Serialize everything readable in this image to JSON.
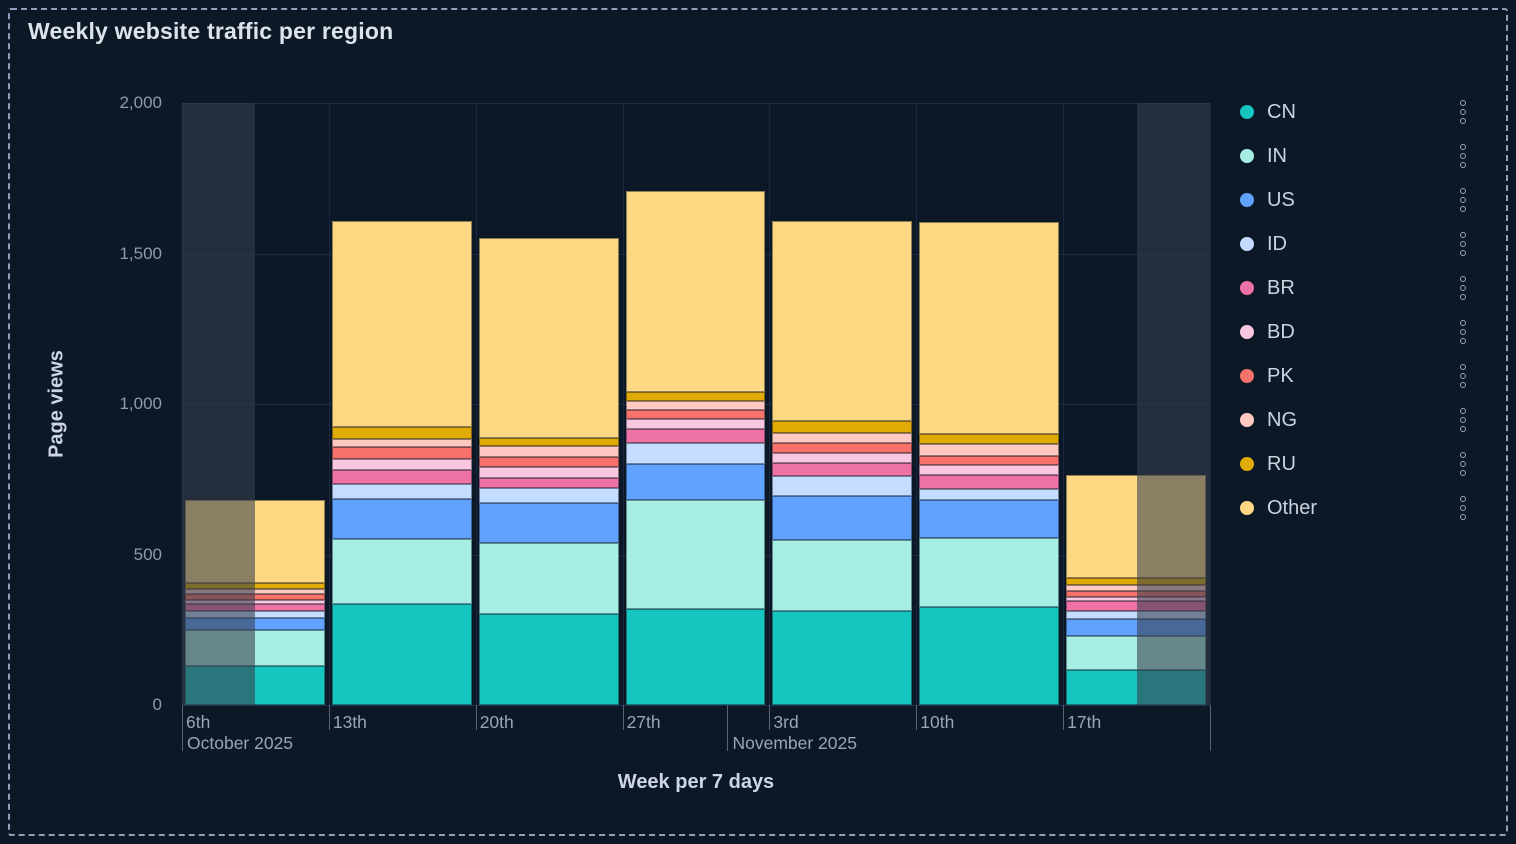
{
  "page": {
    "title": "Weekly website traffic per region"
  },
  "axes": {
    "y": {
      "title": "Page views",
      "tick_labels": [
        "0",
        "500",
        "1,000",
        "1,500",
        "2,000"
      ]
    },
    "x": {
      "title": "Week per 7 days"
    }
  },
  "legend": {
    "action_icon": "vertical-dots-menu",
    "items": [
      "CN",
      "IN",
      "US",
      "ID",
      "BR",
      "BD",
      "PK",
      "NG",
      "RU",
      "Other"
    ]
  },
  "chart_data": {
    "type": "bar",
    "stacked": true,
    "title": "Weekly website traffic per region",
    "xlabel": "Week per 7 days",
    "ylabel": "Page views",
    "ylim": [
      0,
      2000
    ],
    "y_ticks": [
      0,
      500,
      1000,
      1500,
      2000
    ],
    "grid": true,
    "legend_position": "right",
    "categories": [
      "6th",
      "13th",
      "20th",
      "27th",
      "3rd",
      "10th",
      "17th"
    ],
    "months": [
      {
        "index": 0,
        "label": "October 2025",
        "day_offset": 0
      },
      {
        "index": 4,
        "label": "November 2025",
        "day_offset": -2
      }
    ],
    "series": [
      {
        "name": "CN",
        "color": "#16C5C0",
        "values": [
          131,
          334,
          302,
          318,
          312,
          325,
          116
        ]
      },
      {
        "name": "IN",
        "color": "#A6EDE4",
        "values": [
          118,
          216,
          235,
          363,
          236,
          229,
          113
        ]
      },
      {
        "name": "US",
        "color": "#61A2FF",
        "values": [
          40,
          134,
          135,
          120,
          146,
          127,
          56
        ]
      },
      {
        "name": "ID",
        "color": "#C3DCFF",
        "values": [
          22,
          49,
          48,
          68,
          68,
          36,
          28
        ]
      },
      {
        "name": "BR",
        "color": "#EE72A6",
        "values": [
          25,
          48,
          33,
          47,
          43,
          47,
          33
        ]
      },
      {
        "name": "BD",
        "color": "#F9C7DF",
        "values": [
          14,
          38,
          39,
          33,
          33,
          33,
          12
        ]
      },
      {
        "name": "PK",
        "color": "#F6726A",
        "values": [
          18,
          39,
          33,
          31,
          31,
          30,
          22
        ]
      },
      {
        "name": "NG",
        "color": "#FFC9C2",
        "values": [
          17,
          25,
          35,
          31,
          36,
          42,
          19
        ]
      },
      {
        "name": "RU",
        "color": "#E0AB05",
        "values": [
          21,
          40,
          26,
          28,
          39,
          30,
          22
        ]
      },
      {
        "name": "Other",
        "color": "#FCD883",
        "values": [
          277,
          686,
          665,
          670,
          664,
          707,
          343
        ]
      }
    ],
    "partial_buckets": {
      "first_category": "left-half-dimmed",
      "last_category": "right-half-dimmed"
    }
  }
}
